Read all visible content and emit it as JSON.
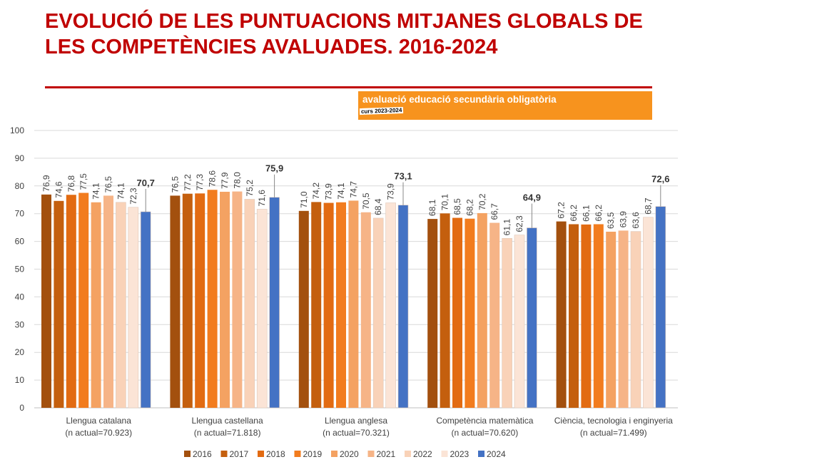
{
  "header": {
    "title": "EVOLUCIÓ DE LES PUNTUACIONS MITJANES GLOBALS DE LES COMPETÈNCIES AVALUADES. 2016-2024",
    "banner_title": "avaluació educació secundària obligatòria",
    "banner_subtitle": "curs 2023-2024"
  },
  "chart_data": {
    "type": "bar",
    "title": "",
    "xlabel": "",
    "ylabel": "",
    "ylim": [
      0,
      100
    ],
    "yticks": [
      0,
      10,
      20,
      30,
      40,
      50,
      60,
      70,
      80,
      90,
      100
    ],
    "grid": true,
    "legend": "bottom",
    "categories": [
      [
        "Llengua catalana",
        "(n actual=70.923)"
      ],
      [
        "Llengua castellana",
        "(n actual=71.818)"
      ],
      [
        "Llengua anglesa",
        "(n actual=70.321)"
      ],
      [
        "Competència matemàtica",
        "(n actual=70.620)"
      ],
      [
        "Ciència, tecnologia i enginyeria",
        "(n actual=71.499)"
      ]
    ],
    "series": [
      {
        "name": "2016",
        "color": "#a3500e",
        "values": [
          76.9,
          76.5,
          71.0,
          68.1,
          67.2
        ]
      },
      {
        "name": "2017",
        "color": "#c45f0e",
        "values": [
          74.6,
          77.2,
          74.2,
          70.1,
          66.2
        ]
      },
      {
        "name": "2018",
        "color": "#e26b12",
        "values": [
          76.8,
          77.3,
          73.9,
          68.5,
          66.1
        ]
      },
      {
        "name": "2019",
        "color": "#f27c1e",
        "values": [
          77.5,
          78.6,
          74.1,
          68.2,
          66.2
        ]
      },
      {
        "name": "2020",
        "color": "#f4a262",
        "values": [
          74.1,
          77.9,
          74.7,
          70.2,
          63.5
        ]
      },
      {
        "name": "2021",
        "color": "#f6b487",
        "values": [
          76.5,
          78.0,
          70.5,
          66.7,
          63.9
        ]
      },
      {
        "name": "2022",
        "color": "#f9d2b8",
        "values": [
          74.1,
          75.2,
          68.4,
          61.1,
          63.6
        ]
      },
      {
        "name": "2023",
        "color": "#fbe4d6",
        "values": [
          72.3,
          71.6,
          73.9,
          62.3,
          68.7
        ]
      },
      {
        "name": "2024",
        "color": "#4472c4",
        "values": [
          70.7,
          75.9,
          73.1,
          64.9,
          72.6
        ]
      }
    ]
  }
}
